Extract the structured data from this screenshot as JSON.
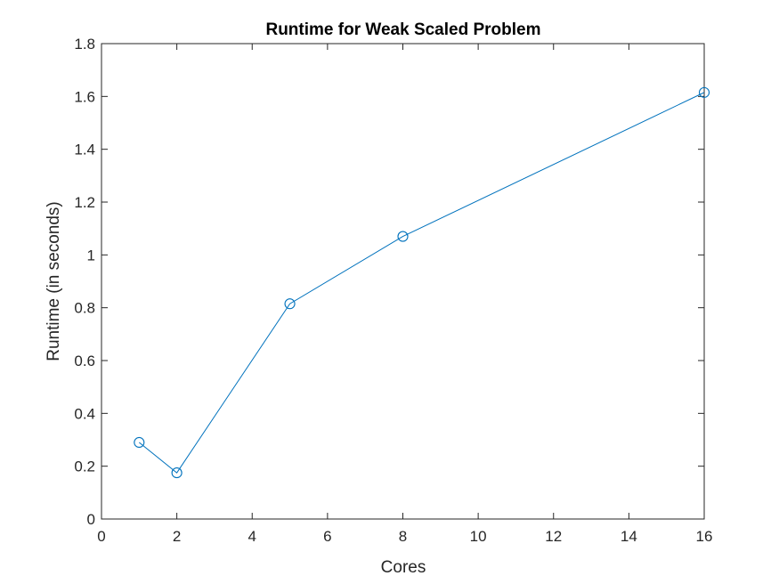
{
  "chart_data": {
    "type": "line",
    "title": "Runtime for Weak Scaled Problem",
    "xlabel": "Cores",
    "ylabel": "Runtime (in seconds)",
    "xlim": [
      0,
      16
    ],
    "ylim": [
      0,
      1.8
    ],
    "xticks": [
      0,
      2,
      4,
      6,
      8,
      10,
      12,
      14,
      16
    ],
    "xtick_labels": [
      "0",
      "2",
      "4",
      "6",
      "8",
      "10",
      "12",
      "14",
      "16"
    ],
    "yticks": [
      0,
      0.2,
      0.4,
      0.6,
      0.8,
      1.0,
      1.2,
      1.4,
      1.6,
      1.8
    ],
    "ytick_labels": [
      "0",
      "0.2",
      "0.4",
      "0.6",
      "0.8",
      "1",
      "1.2",
      "1.4",
      "1.6",
      "1.8"
    ],
    "grid": false,
    "legend": false,
    "series": [
      {
        "x": [
          1,
          2,
          5,
          8,
          16
        ],
        "y": [
          0.29,
          0.175,
          0.815,
          1.07,
          1.615
        ],
        "marker": "circle",
        "color": "#0072BD"
      }
    ]
  }
}
